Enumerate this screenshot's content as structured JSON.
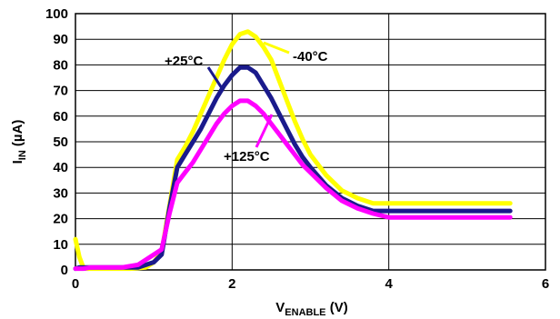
{
  "chart_data": {
    "type": "line",
    "xlabel": {
      "main": "V",
      "sub": "ENABLE",
      "unit": " (V)"
    },
    "ylabel": {
      "main": "I",
      "sub": "IN",
      "unit": " (µA)"
    },
    "xlim": [
      0,
      6
    ],
    "ylim": [
      0,
      100
    ],
    "xticks": [
      0,
      2,
      4,
      6
    ],
    "yticks": [
      0,
      10,
      20,
      30,
      40,
      50,
      60,
      70,
      80,
      90,
      100
    ],
    "grid": true,
    "series": [
      {
        "name": "-40°C",
        "color": "#ffff00",
        "x": [
          0,
          0.05,
          0.1,
          0.15,
          0.3,
          0.5,
          0.7,
          0.9,
          1.0,
          1.1,
          1.2,
          1.3,
          1.4,
          1.5,
          1.6,
          1.7,
          1.8,
          1.9,
          2.0,
          2.1,
          2.2,
          2.3,
          2.4,
          2.5,
          2.6,
          2.7,
          2.8,
          2.9,
          3.0,
          3.2,
          3.4,
          3.6,
          3.8,
          4.0,
          4.5,
          5.0,
          5.55
        ],
        "y": [
          12,
          5,
          1,
          0.5,
          0.5,
          0.5,
          0.5,
          1,
          3,
          7,
          25,
          43,
          48,
          54,
          61,
          68,
          75,
          82,
          88,
          92,
          93,
          91,
          87,
          82,
          74,
          66,
          58,
          51,
          45,
          37,
          31,
          28,
          26,
          26,
          26,
          26,
          26
        ]
      },
      {
        "name": "+25°C",
        "color": "#1a1a8c",
        "x": [
          0,
          0.05,
          0.1,
          0.2,
          0.4,
          0.6,
          0.8,
          0.9,
          1.0,
          1.1,
          1.2,
          1.3,
          1.4,
          1.5,
          1.6,
          1.7,
          1.8,
          1.9,
          2.0,
          2.1,
          2.2,
          2.3,
          2.4,
          2.5,
          2.6,
          2.7,
          2.8,
          2.9,
          3.0,
          3.2,
          3.4,
          3.6,
          3.8,
          4.0,
          4.5,
          5.0,
          5.55
        ],
        "y": [
          0.5,
          1,
          1,
          1,
          1,
          1,
          1,
          2,
          3,
          6,
          24,
          40,
          45,
          50,
          55,
          61,
          67,
          72,
          76,
          79,
          79,
          77,
          72,
          67,
          61,
          55,
          49,
          44,
          40,
          33,
          28,
          25,
          23,
          23,
          23,
          23,
          23
        ]
      },
      {
        "name": "+125°C",
        "color": "#ff00ff",
        "x": [
          0,
          0.1,
          0.2,
          0.4,
          0.6,
          0.8,
          0.9,
          1.0,
          1.1,
          1.2,
          1.3,
          1.4,
          1.5,
          1.6,
          1.7,
          1.8,
          1.9,
          2.0,
          2.1,
          2.2,
          2.3,
          2.4,
          2.5,
          2.6,
          2.7,
          2.8,
          2.9,
          3.0,
          3.2,
          3.4,
          3.6,
          3.8,
          4.0,
          4.5,
          5.0,
          5.55
        ],
        "y": [
          0.5,
          0.5,
          1,
          1,
          1,
          2,
          4,
          6,
          8,
          22,
          34,
          38,
          42,
          47,
          52,
          57,
          61,
          64,
          66,
          66,
          64,
          61,
          57,
          53,
          49,
          45,
          41,
          38,
          32,
          27,
          24,
          22,
          20.5,
          20.5,
          20.5,
          20.5
        ]
      }
    ],
    "annotations": [
      {
        "text": "+25°C",
        "series": "+25°C"
      },
      {
        "text": "-40°C",
        "series": "-40°C"
      },
      {
        "text": "+125°C",
        "series": "+125°C"
      }
    ]
  }
}
